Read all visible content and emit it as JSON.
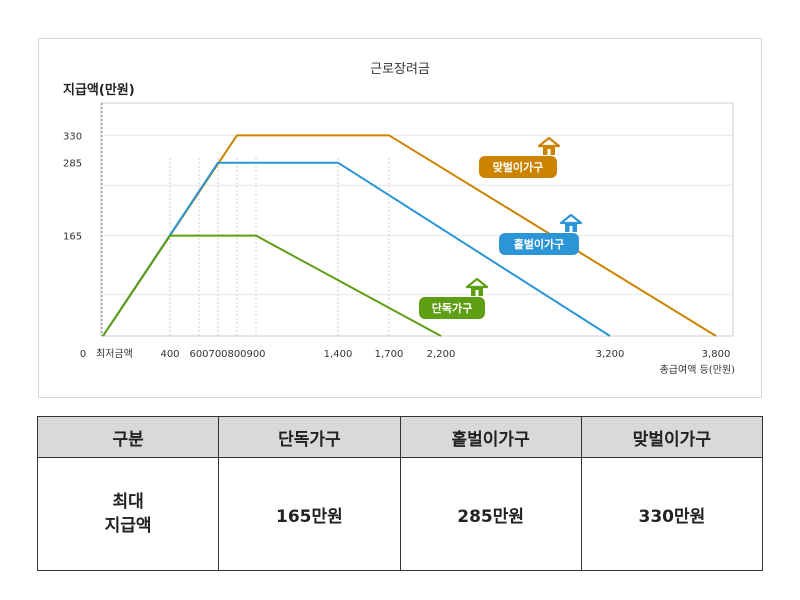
{
  "chart_data": {
    "type": "line",
    "title": "근로장려금",
    "ylabel": "지급액(만원)",
    "xlabel": "총급여액 등(만원)",
    "x_ticks": [
      {
        "value": 0,
        "label": "0"
      },
      {
        "value": 0.35,
        "label": "최저금액"
      },
      {
        "value": 400,
        "label": "400"
      },
      {
        "value": 600,
        "label": "600"
      },
      {
        "value": 700,
        "label": "700"
      },
      {
        "value": 800,
        "label": "800"
      },
      {
        "value": 900,
        "label": "900"
      },
      {
        "value": 1400,
        "label": "1,400"
      },
      {
        "value": 1700,
        "label": "1,700"
      },
      {
        "value": 2200,
        "label": "2,200"
      },
      {
        "value": 3200,
        "label": "3,200"
      },
      {
        "value": 3800,
        "label": "3,800"
      }
    ],
    "y_ticks": [
      {
        "value": 330,
        "label": "330"
      },
      {
        "value": 285,
        "label": "285"
      },
      {
        "value": 165,
        "label": "165"
      }
    ],
    "ylim": [
      0,
      370
    ],
    "grid": true,
    "series": [
      {
        "name": "맞벌이가구",
        "color": "#cc8400",
        "points": [
          [
            0,
            0
          ],
          [
            800,
            330
          ],
          [
            1700,
            330
          ],
          [
            3800,
            0
          ]
        ]
      },
      {
        "name": "홑벌이가구",
        "color": "#2b95d6",
        "points": [
          [
            0,
            0
          ],
          [
            700,
            285
          ],
          [
            1400,
            285
          ],
          [
            3200,
            0
          ]
        ]
      },
      {
        "name": "단독가구",
        "color": "#5e9e12",
        "points": [
          [
            0,
            0
          ],
          [
            400,
            165
          ],
          [
            900,
            165
          ],
          [
            2200,
            0
          ]
        ]
      }
    ]
  },
  "table": {
    "headers": [
      "구분",
      "단독가구",
      "홑벌이가구",
      "맞벌이가구"
    ],
    "row_label": "최대\n지급액",
    "values": [
      "165만원",
      "285만원",
      "330만원"
    ]
  }
}
